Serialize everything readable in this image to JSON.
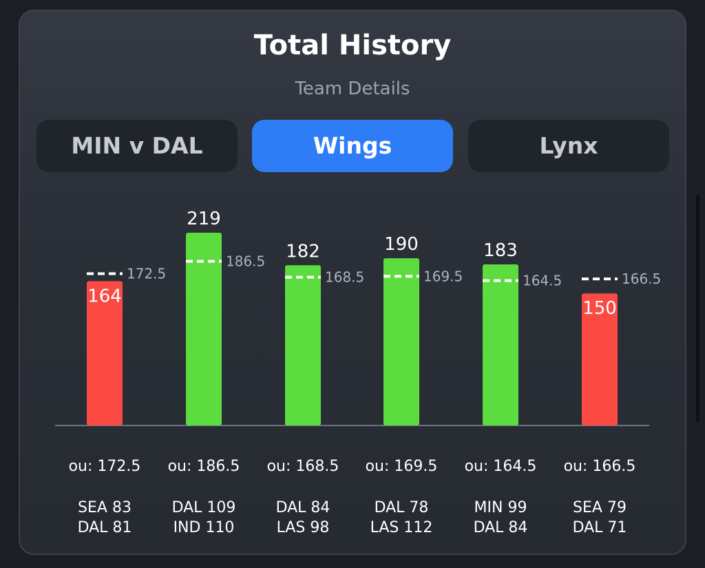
{
  "header": {
    "title": "Total History",
    "subtitle": "Team Details"
  },
  "tabs": [
    {
      "label": "MIN v DAL",
      "active": false
    },
    {
      "label": "Wings",
      "active": true
    },
    {
      "label": "Lynx",
      "active": false
    }
  ],
  "colors": {
    "over": "#5ddc3f",
    "under": "#fb4a43",
    "active_tab": "#2f7df6",
    "baseline": "#6a7289"
  },
  "chart_data": {
    "type": "bar",
    "categories": [
      "SEA 83 DAL 81",
      "DAL 109 IND 110",
      "DAL 84 LAS 98",
      "DAL 78 LAS 112",
      "MIN 99 DAL 84",
      "SEA 79 DAL 71"
    ],
    "values": [
      164,
      219,
      182,
      190,
      183,
      150
    ],
    "value_labels": [
      "164",
      "219",
      "182",
      "190",
      "183",
      "150"
    ],
    "ou_values": [
      172.5,
      186.5,
      168.5,
      169.5,
      164.5,
      166.5
    ],
    "ou_labels": [
      "172.5",
      "186.5",
      "168.5",
      "169.5",
      "164.5",
      "166.5"
    ],
    "ou_captions": [
      "ou: 172.5",
      "ou: 186.5",
      "ou: 168.5",
      "ou: 169.5",
      "ou: 164.5",
      "ou: 166.5"
    ],
    "score_line1": [
      "SEA 83",
      "DAL 109",
      "DAL 84",
      "DAL 78",
      "MIN 99",
      "SEA 79"
    ],
    "score_line2": [
      "DAL 81",
      "IND 110",
      "LAS 98",
      "LAS 112",
      "DAL 84",
      "DAL 71"
    ],
    "result": [
      "under",
      "over",
      "over",
      "over",
      "over",
      "under"
    ],
    "ylim": [
      0,
      219
    ],
    "grid": false,
    "title": "",
    "xlabel": "",
    "ylabel": ""
  }
}
